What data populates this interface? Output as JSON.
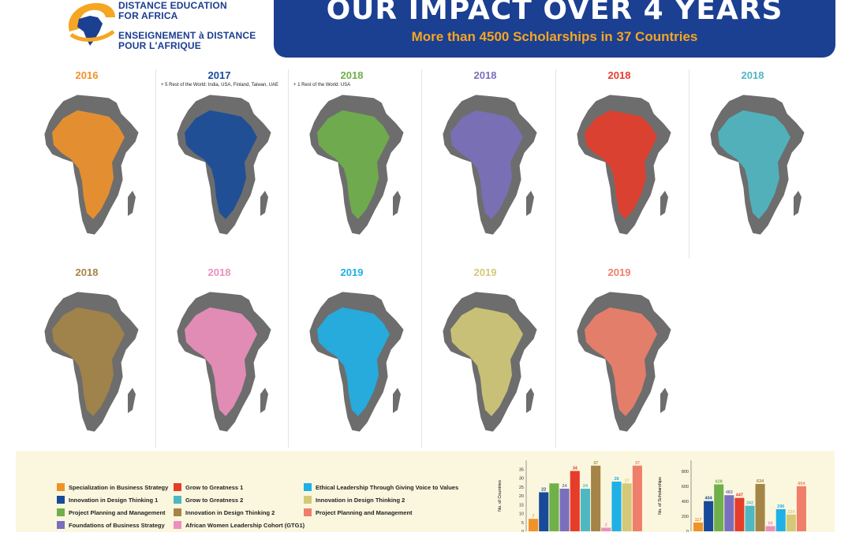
{
  "header": {
    "logo_line1": "DISTANCE EDUCATION",
    "logo_line2": "FOR AFRICA",
    "logo_line3": "ENSEIGNEMENT à DISTANCE",
    "logo_line4": "POUR L'AFRIQUE",
    "title": "OUR IMPACT OVER 4 YEARS",
    "subtitle": "More than 4500 Scholarships in 37 Countries"
  },
  "colors": {
    "brand_blue": "#1b3f91",
    "brand_orange": "#f5a623",
    "map_base": "#6d6d6d"
  },
  "maps": [
    {
      "year": "2016",
      "color": "#f0922a",
      "note": ""
    },
    {
      "year": "2017",
      "color": "#174b99",
      "note": "+ 5 Rest of the World: India, USA, Finland, Taiwan, UAE"
    },
    {
      "year": "2018",
      "color": "#6fb04a",
      "note": "+ 1 Rest of the World: USA"
    },
    {
      "year": "2018",
      "color": "#7a6fbd",
      "note": ""
    },
    {
      "year": "2018",
      "color": "#e63c2a",
      "note": ""
    },
    {
      "year": "2018",
      "color": "#4fb7c2",
      "note": ""
    },
    {
      "year": "2018",
      "color": "#a58447",
      "note": ""
    },
    {
      "year": "2018",
      "color": "#ec8fbd",
      "note": ""
    },
    {
      "year": "2019",
      "color": "#1fb0e8",
      "note": ""
    },
    {
      "year": "2019",
      "color": "#d3c978",
      "note": ""
    },
    {
      "year": "2019",
      "color": "#ef7f6a",
      "note": ""
    }
  ],
  "legend": [
    {
      "label": "Specialization in Business Strategy",
      "color": "#f0922a"
    },
    {
      "label": "Innovation in Design Thinking 1",
      "color": "#174b99"
    },
    {
      "label": "Project Planning and Management",
      "color": "#6fb04a"
    },
    {
      "label": "Foundations of Business Strategy",
      "color": "#7a6fbd"
    },
    {
      "label": "Grow to Greatness 1",
      "color": "#e63c2a"
    },
    {
      "label": "Grow to Greatness 2",
      "color": "#4fb7c2"
    },
    {
      "label": "Innovation in Design Thinking 2",
      "color": "#a58447"
    },
    {
      "label": "African Women Leadership Cohort (GTG1)",
      "color": "#ec8fbd"
    },
    {
      "label": "Ethical Leadership Through Giving Voice to Values",
      "color": "#1fb0e8"
    },
    {
      "label": "Innovation in Design Thinking 2",
      "color": "#d3c978"
    },
    {
      "label": "Project Planning and Management",
      "color": "#ef7f6a"
    }
  ],
  "chart_data": [
    {
      "type": "bar",
      "ylabel": "No. of Countries",
      "ylim": [
        0,
        40
      ],
      "yticks": [
        "0",
        "5",
        "10",
        "15",
        "20",
        "25",
        "30",
        "35"
      ],
      "values": [
        7,
        22,
        27,
        24,
        34,
        24,
        37,
        2,
        28,
        27,
        37
      ],
      "value_labels": [
        "7",
        "22",
        "",
        "24",
        "34",
        "24",
        "37",
        "2",
        "28",
        "27",
        "37"
      ],
      "colors": [
        "#f0922a",
        "#174b99",
        "#6fb04a",
        "#7a6fbd",
        "#e63c2a",
        "#4fb7c2",
        "#a58447",
        "#ec8fbd",
        "#1fb0e8",
        "#d3c978",
        "#ef7f6a"
      ],
      "label_colors": [
        "#f0922a",
        "#174b99",
        "#6fb04a",
        "#7a6fbd",
        "#e63c2a",
        "#4fb7c2",
        "#a58447",
        "#ec8fbd",
        "#1fb0e8",
        "#d3c978",
        "#ef7f6a"
      ]
    },
    {
      "type": "bar",
      "ylabel": "No. of Scholarships",
      "ylim": [
        0,
        950
      ],
      "yticks": [
        "0",
        "200",
        "400",
        "600",
        "800"
      ],
      "values": [
        117,
        404,
        628,
        483,
        447,
        342,
        634,
        69,
        296,
        224,
        604
      ],
      "value_labels": [
        "117",
        "404",
        "628",
        "483",
        "447",
        "342",
        "634",
        "69",
        "296",
        "224",
        "604"
      ],
      "colors": [
        "#f0922a",
        "#174b99",
        "#6fb04a",
        "#7a6fbd",
        "#e63c2a",
        "#4fb7c2",
        "#a58447",
        "#ec8fbd",
        "#1fb0e8",
        "#d3c978",
        "#ef7f6a"
      ],
      "label_colors": [
        "#f0922a",
        "#174b99",
        "#6fb04a",
        "#7a6fbd",
        "#e63c2a",
        "#4fb7c2",
        "#a58447",
        "#ec8fbd",
        "#1fb0e8",
        "#d3c978",
        "#ef7f6a"
      ]
    }
  ]
}
